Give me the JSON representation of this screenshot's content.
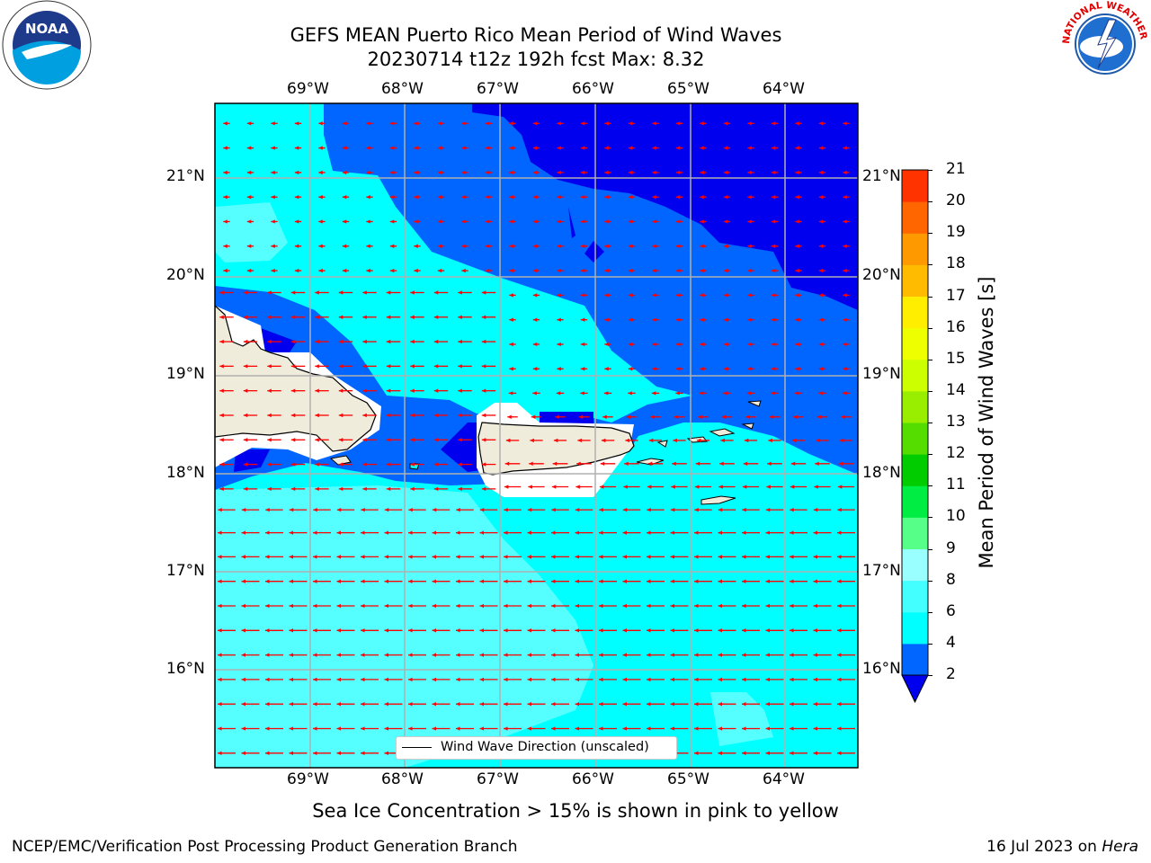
{
  "header": {
    "title_line1": "GEFS MEAN Puerto Rico Mean Period of Wind Waves",
    "title_line2": "20230714 t12z 192h fcst   Max: 8.32"
  },
  "logos": {
    "left": {
      "icon": "noaa-logo",
      "text": "NOAA"
    },
    "right": {
      "icon": "nws-logo",
      "text": "NATIONAL WEATHER SERVICE"
    }
  },
  "map": {
    "lon_labels": [
      "69°W",
      "68°W",
      "67°W",
      "66°W",
      "65°W",
      "64°W"
    ],
    "lat_labels": [
      "21°N",
      "20°N",
      "19°N",
      "18°N",
      "17°N",
      "16°N"
    ],
    "legend_label": "Wind Wave Direction (unscaled)",
    "arrow_color": "#ff0000",
    "land_color": "#efecdc",
    "grid_color": "#b0b0b0"
  },
  "colorbar": {
    "title": "Mean Period of Wind Waves [s]",
    "ticks": [
      "2",
      "4",
      "6",
      "8",
      "9",
      "10",
      "11",
      "12",
      "13",
      "14",
      "15",
      "16",
      "17",
      "18",
      "19",
      "20",
      "21"
    ],
    "colors": [
      "#0066ff",
      "#00ffff",
      "#44ffff",
      "#99ffff",
      "#55ff88",
      "#00ee44",
      "#00cc00",
      "#55dd00",
      "#99ee00",
      "#ccff00",
      "#eeff00",
      "#ffee00",
      "#ffbb00",
      "#ff9900",
      "#ff6600",
      "#ff3300",
      "#ff0000"
    ],
    "under_color": "#0000ee"
  },
  "footer": {
    "subtitle": "Sea Ice Concentration > 15% is shown in pink to yellow",
    "left": "NCEP/EMC/Verification Post Processing Product Generation Branch",
    "right_prefix": "16 Jul 2023 on ",
    "right_machine": "Hera"
  }
}
